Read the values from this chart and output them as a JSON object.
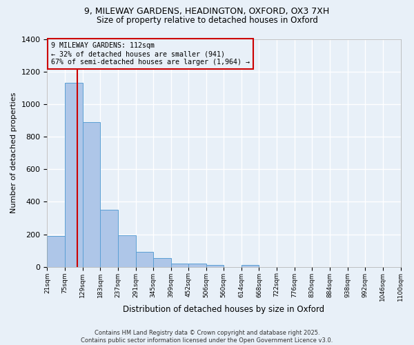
{
  "title_line1": "9, MILEWAY GARDENS, HEADINGTON, OXFORD, OX3 7XH",
  "title_line2": "Size of property relative to detached houses in Oxford",
  "xlabel": "Distribution of detached houses by size in Oxford",
  "ylabel": "Number of detached properties",
  "bin_edges": [
    21,
    75,
    129,
    183,
    237,
    291,
    345,
    399,
    452,
    506,
    560,
    614,
    668,
    722,
    776,
    830,
    884,
    938,
    992,
    1046,
    1100
  ],
  "bar_heights": [
    190,
    1130,
    890,
    350,
    195,
    90,
    55,
    20,
    20,
    12,
    0,
    12,
    0,
    0,
    0,
    0,
    0,
    0,
    0,
    0
  ],
  "bar_color": "#aec6e8",
  "bar_edge_color": "#5a9fd4",
  "background_color": "#e8f0f8",
  "grid_color": "#ffffff",
  "property_size": 112,
  "vline_color": "#cc0000",
  "annotation_line1": "9 MILEWAY GARDENS: 112sqm",
  "annotation_line2": "← 32% of detached houses are smaller (941)",
  "annotation_line3": "67% of semi-detached houses are larger (1,964) →",
  "annotation_box_color": "#cc0000",
  "ylim": [
    0,
    1400
  ],
  "yticks": [
    0,
    200,
    400,
    600,
    800,
    1000,
    1200,
    1400
  ],
  "footer_line1": "Contains HM Land Registry data © Crown copyright and database right 2025.",
  "footer_line2": "Contains public sector information licensed under the Open Government Licence v3.0."
}
